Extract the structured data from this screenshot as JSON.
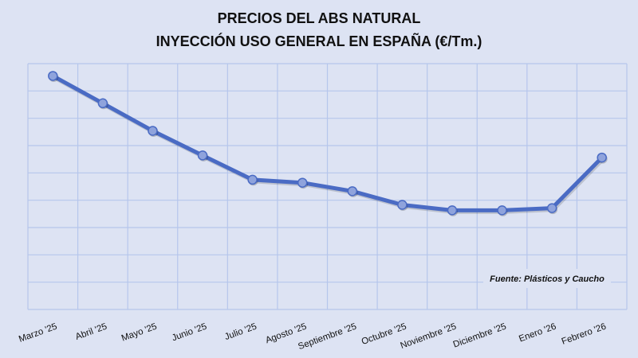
{
  "chart_data": {
    "type": "line",
    "title": [
      "PRECIOS DEL ABS NATURAL",
      "INYECCIÓN USO GENERAL EN ESPAÑA (€/Tm.)"
    ],
    "xlabel": "",
    "ylabel": "",
    "categories": [
      "Marzo '25",
      "Abril '25",
      "Mayo '25",
      "Junio '25",
      "Julio '25",
      "Agosto '25",
      "Septiembre '25",
      "Octubre '25",
      "Noviembre '25",
      "Diciembre '25",
      "Enero '26",
      "Febrero '26"
    ],
    "series": [
      {
        "name": "ABS natural",
        "values": [
          8.55,
          7.55,
          6.54,
          5.64,
          4.75,
          4.64,
          4.33,
          3.83,
          3.63,
          3.63,
          3.71,
          5.56
        ]
      }
    ],
    "ylim": [
      0,
      9
    ],
    "y_units_note": "relative gridline units (no y-axis labels shown)",
    "grid": true,
    "legend": "none",
    "annotation": "Fuente: Plásticos y Caucho",
    "colors": {
      "line": "#4a6bc4",
      "marker": "#8fa3dc",
      "grid": "#b6c6ec",
      "background": "#dde3f3"
    }
  }
}
